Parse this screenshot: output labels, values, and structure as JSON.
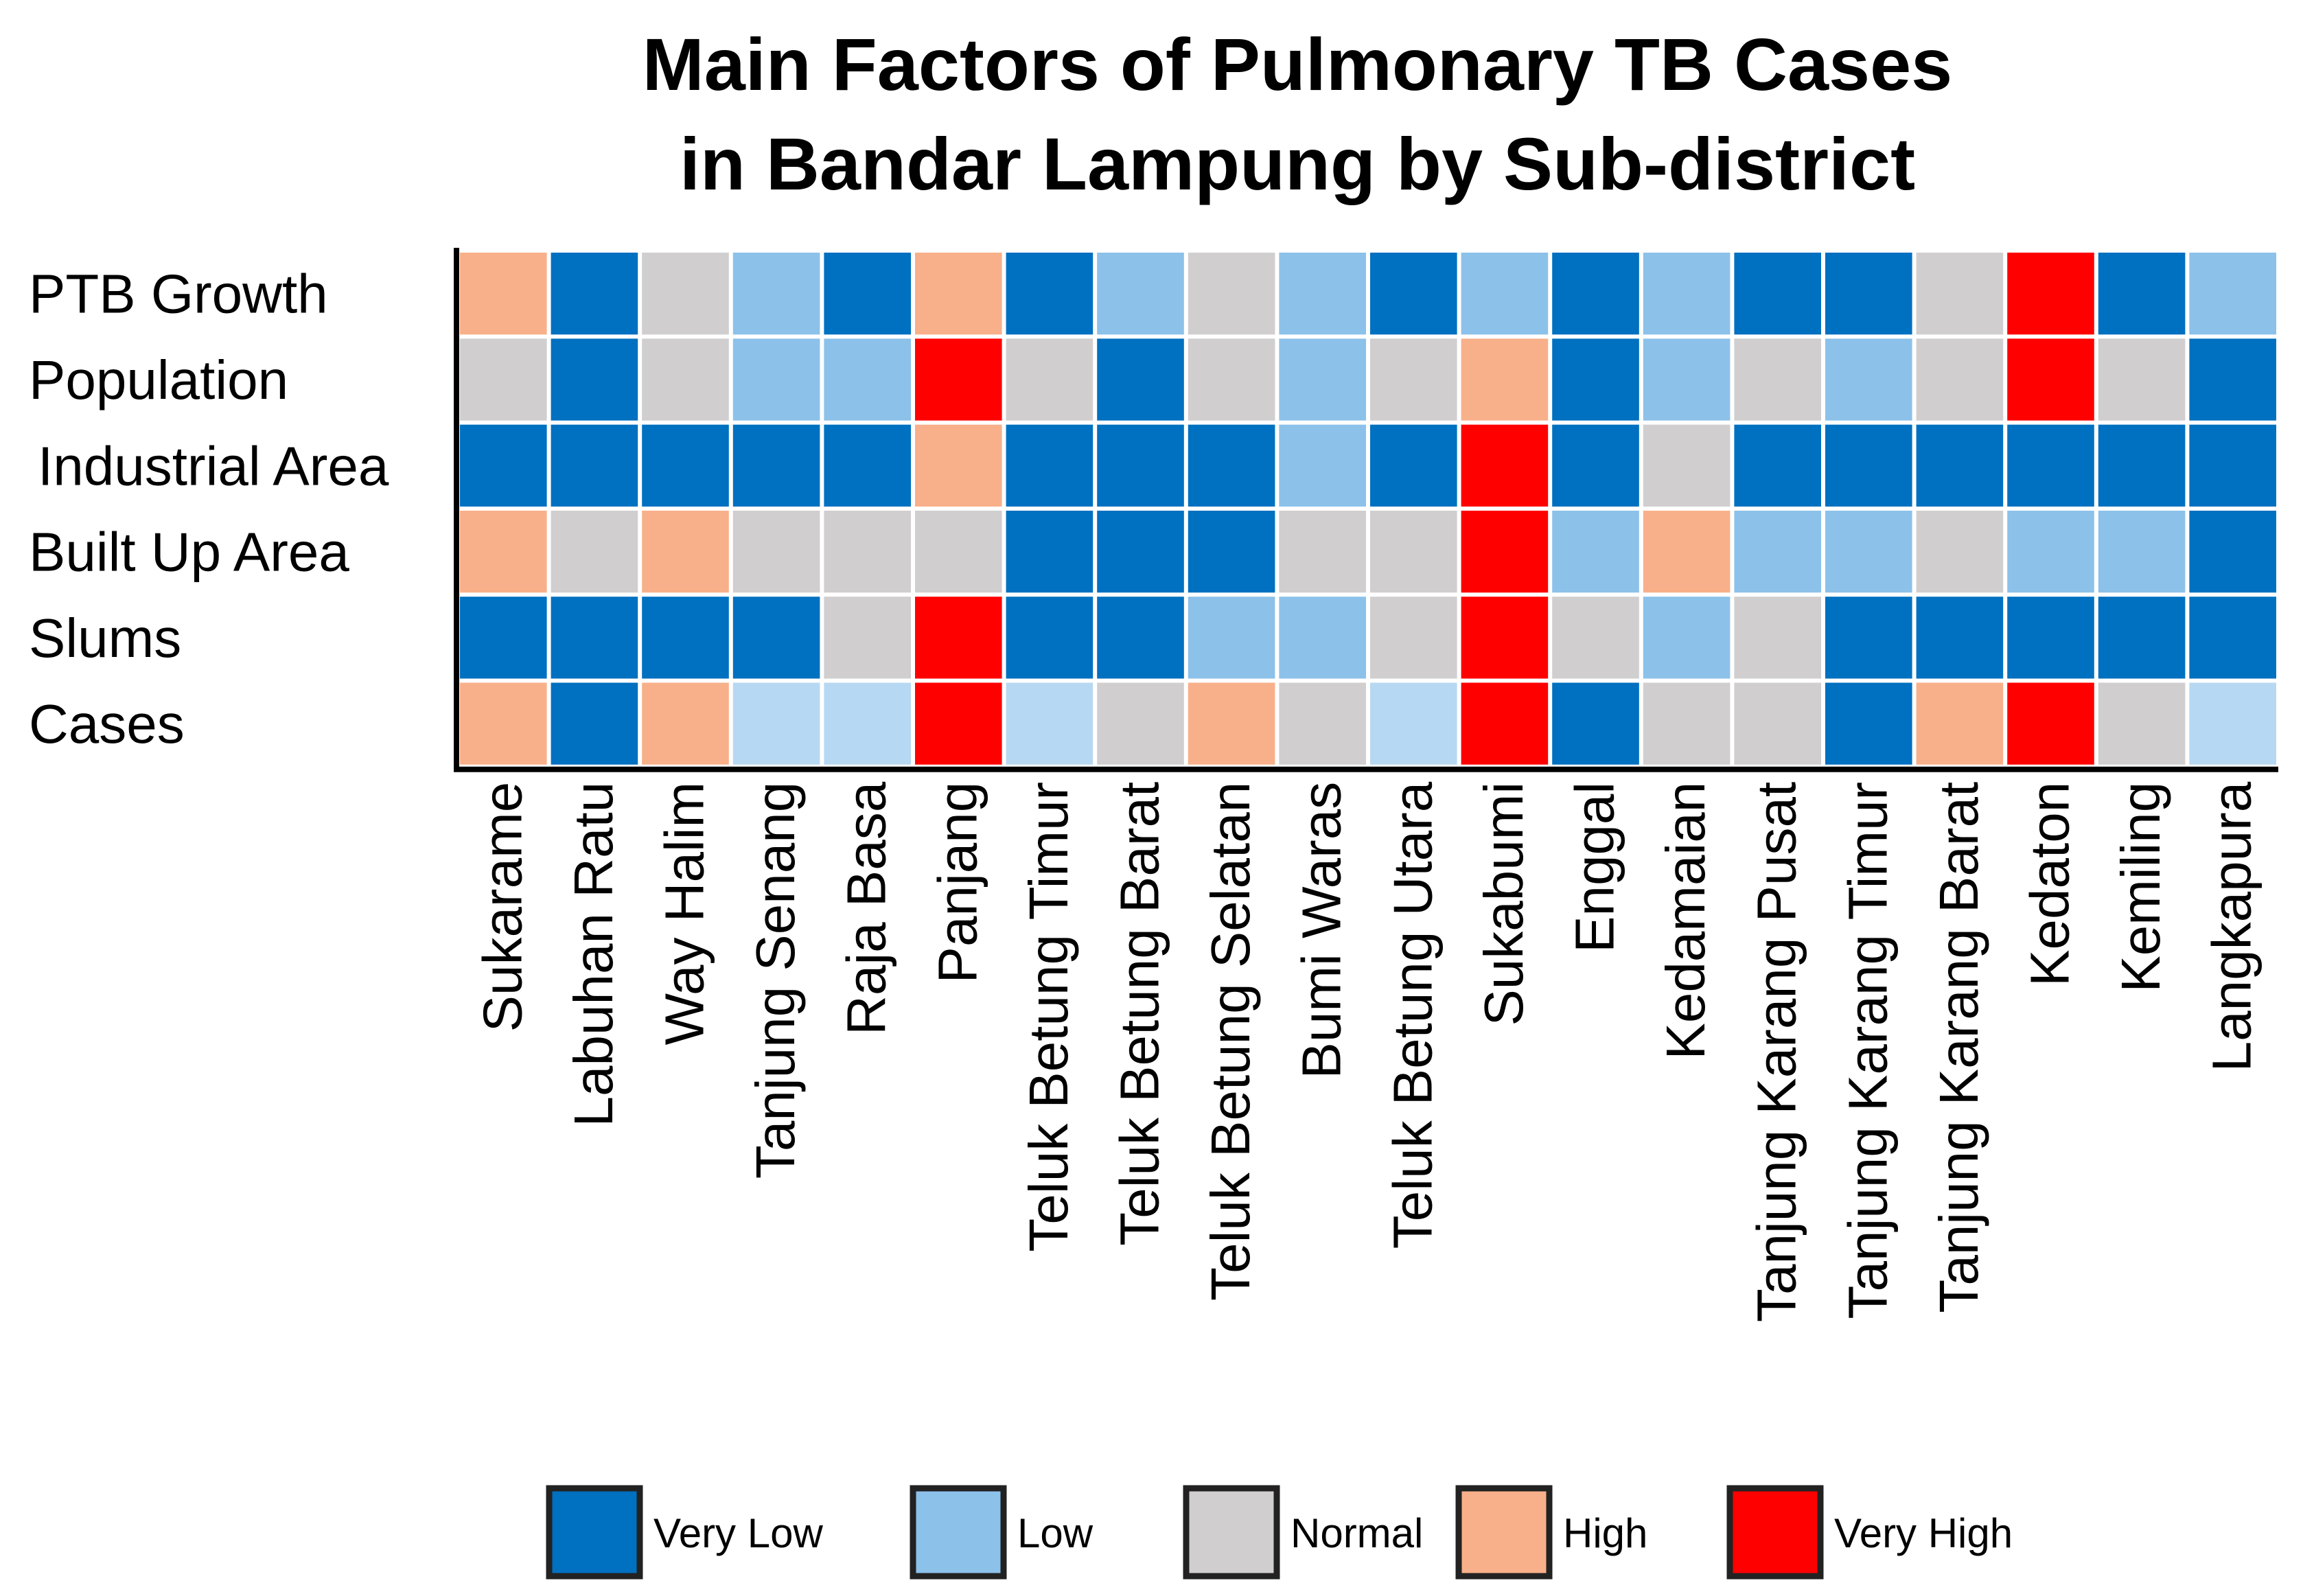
{
  "chart_data": {
    "type": "heatmap",
    "title_lines": [
      "Main Factors of Pulmonary TB Cases",
      "in Bandar Lampung by Sub-district"
    ],
    "rows": [
      "PTB Growth",
      "Population",
      "Industrial Area",
      "Built Up Area",
      "Slums",
      "Cases"
    ],
    "columns": [
      "Sukarame",
      "Labuhan Ratu",
      "Way Halim",
      "Tanjung Senang",
      "Raja Basa",
      "Panjang",
      "Teluk Betung Timur",
      "Teluk Betung Barat",
      "Teluk Betung Selatan",
      "Bumi Waras",
      "Teluk Betung Utara",
      "Sukabumi",
      "Enggal",
      "Kedamaian",
      "Tanjung Karang Pusat",
      "Tanjung Karang Timur",
      "Tanjung Karang Barat",
      "Kedaton",
      "Kemiling",
      "Langkapura"
    ],
    "categories": [
      "Very Low",
      "Low",
      "Normal",
      "High",
      "Very High"
    ],
    "values": [
      [
        "High",
        "Very Low",
        "Normal",
        "Low",
        "Very Low",
        "High",
        "Very Low",
        "Low",
        "Normal",
        "Low",
        "Very Low",
        "Low",
        "Very Low",
        "Low",
        "Very Low",
        "Very Low",
        "Normal",
        "Very High",
        "Very Low",
        "Low"
      ],
      [
        "Normal",
        "Very Low",
        "Normal",
        "Low",
        "Low",
        "Very High",
        "Normal",
        "Very Low",
        "Normal",
        "Low",
        "Normal",
        "High",
        "Very Low",
        "Low",
        "Normal",
        "Low",
        "Normal",
        "Very High",
        "Normal",
        "Very Low"
      ],
      [
        "Very Low",
        "Very Low",
        "Very Low",
        "Very Low",
        "Very Low",
        "High",
        "Very Low",
        "Very Low",
        "Very Low",
        "Low",
        "Very Low",
        "Very High",
        "Very Low",
        "Normal",
        "Very Low",
        "Very Low",
        "Very Low",
        "Very Low",
        "Very Low",
        "Very Low"
      ],
      [
        "High",
        "Normal",
        "High",
        "Normal",
        "Normal",
        "Normal",
        "Very Low",
        "Very Low",
        "Very Low",
        "Normal",
        "Normal",
        "Very High",
        "Low",
        "High",
        "Low",
        "Low",
        "Normal",
        "Low",
        "Low",
        "Very Low"
      ],
      [
        "Very Low",
        "Very Low",
        "Very Low",
        "Very Low",
        "Normal",
        "Very High",
        "Very Low",
        "Very Low",
        "Low",
        "Low",
        "Normal",
        "Very High",
        "Normal",
        "Low",
        "Normal",
        "Very Low",
        "Very Low",
        "Very Low",
        "Very Low",
        "Very Low"
      ],
      [
        "High",
        "Very Low",
        "High",
        "Low",
        "Low",
        "Very High",
        "Low",
        "Normal",
        "High",
        "Normal",
        "Low",
        "Very High",
        "Very Low",
        "Normal",
        "Normal",
        "Very Low",
        "High",
        "Very High",
        "Normal",
        "Low"
      ]
    ],
    "colors": {
      "Very Low": "#0070C0",
      "Low": "#8CC1EA",
      "Normal": "#D0CECE",
      "High": "#F8B08A",
      "Very High": "#FF0000",
      "Low (Cases row)": "#B7D8F2"
    },
    "legend_position": "bottom"
  }
}
